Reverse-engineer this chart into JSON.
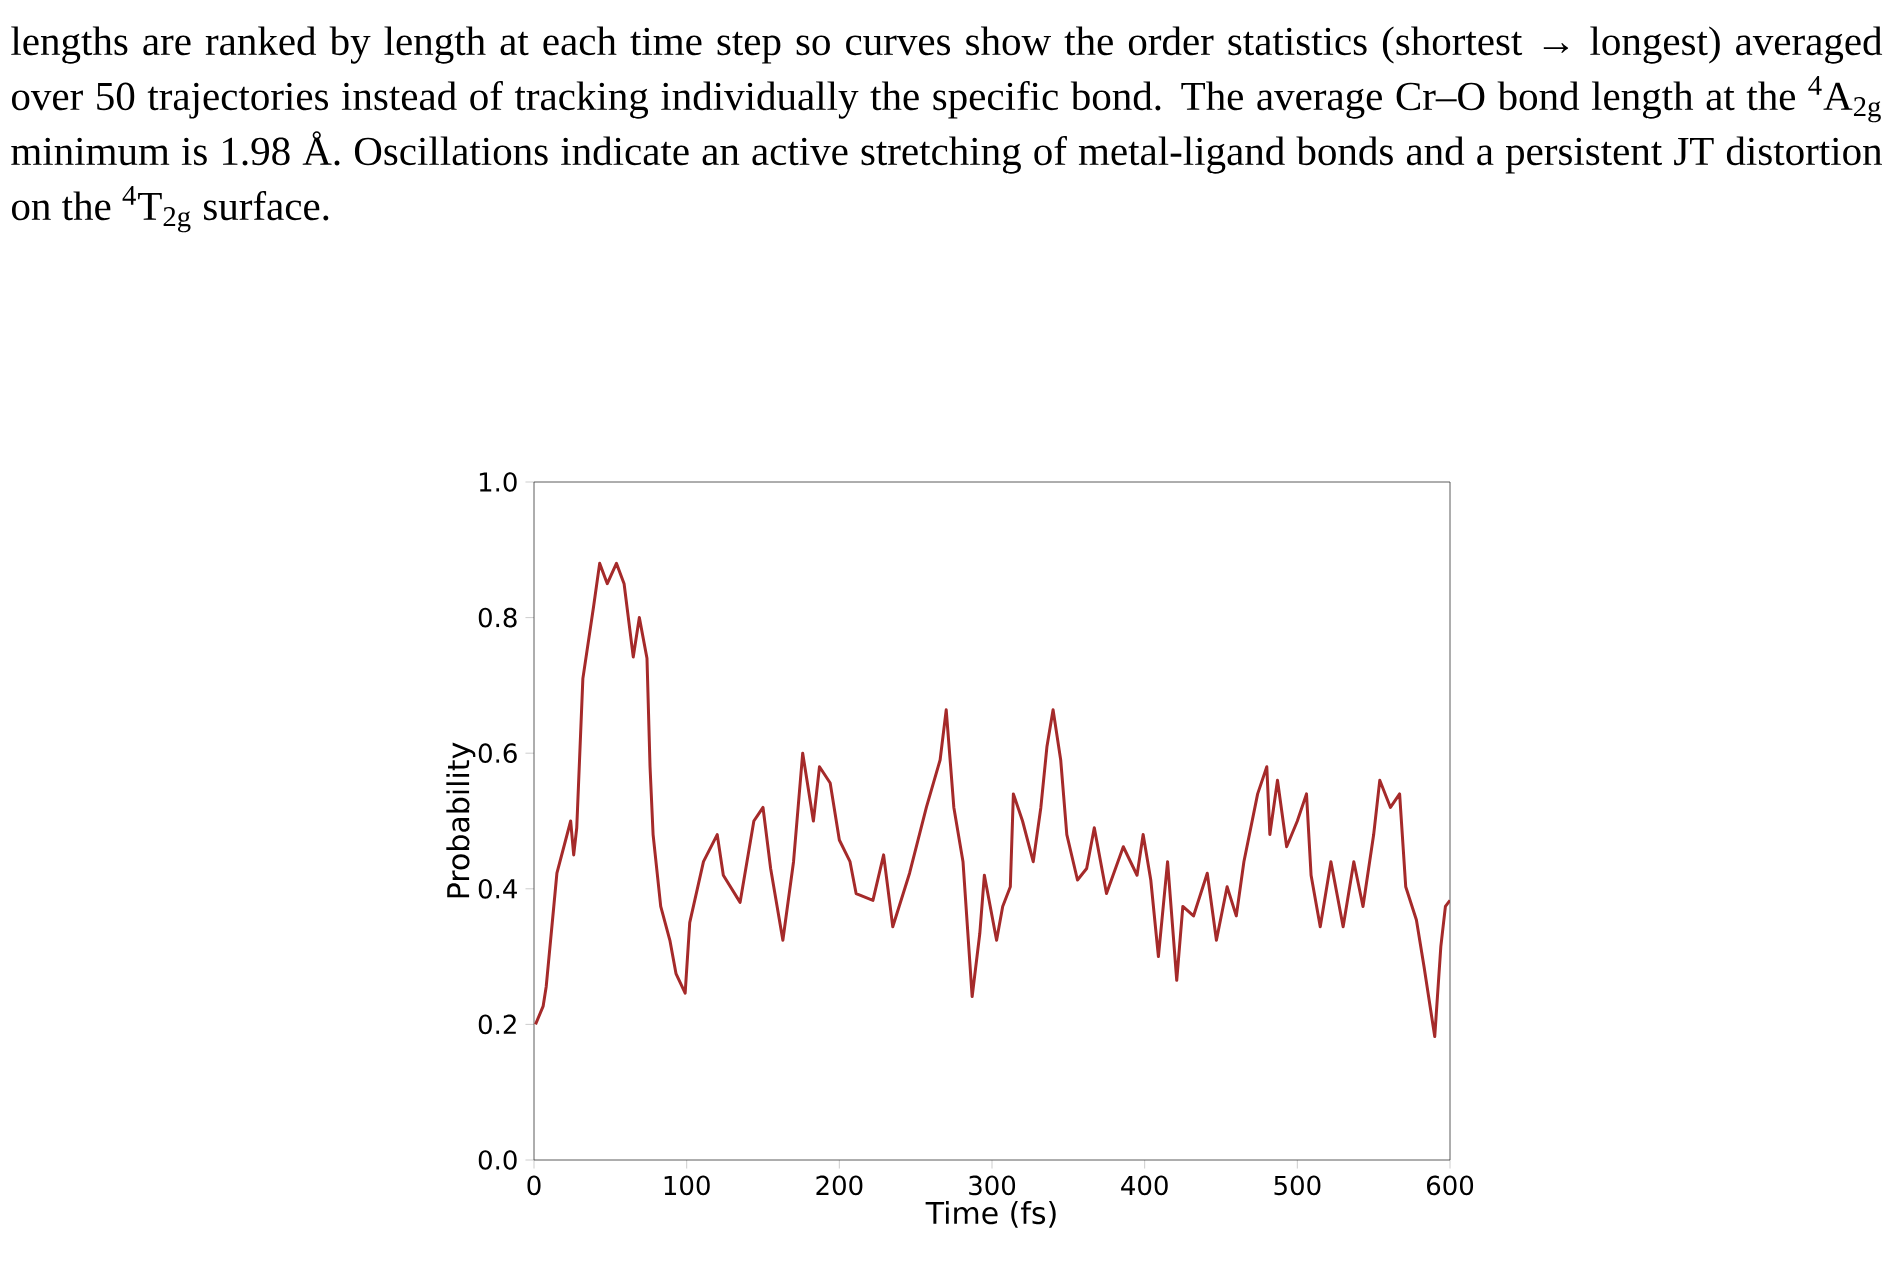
{
  "chart_data": {
    "type": "line",
    "xlabel": "Time (fs)",
    "ylabel": "Probability",
    "annotations": [
      "lengths are ranked by length at each time step so curves show the order statistics (shortest → longest) averaged over 50 trajectories instead of tracking individually the specific bond. The average Cr–O bond length at the $^{4}$A$_{2g}$ minimum is 1.98 Å. Oscillations indicate an active stretching of metal-ligand bonds and a persistent JT distortion on the $^{4}$T$_{2g}$ surface."
    ],
    "xlim": [
      0,
      600
    ],
    "ylim": [
      0,
      1
    ],
    "xticks": [
      0,
      100,
      200,
      300,
      400,
      500,
      600
    ],
    "yticks": [
      {
        "value": 0,
        "label": "0.0"
      },
      {
        "value": 0.2,
        "label": "0.2"
      },
      {
        "value": 0.4,
        "label": "0.4"
      },
      {
        "value": 0.6,
        "label": "0.6"
      },
      {
        "value": 0.8,
        "label": "0.8"
      },
      {
        "value": 1,
        "label": "1.0"
      }
    ],
    "series": [
      {
        "color": "#a52a2a",
        "x": [
          1,
          6,
          8,
          13,
          15,
          24,
          26,
          28,
          32,
          39,
          43,
          48,
          54,
          59,
          65,
          69,
          74,
          76,
          78,
          83,
          89,
          93,
          99,
          102,
          111,
          120,
          124,
          135,
          144,
          150,
          155,
          163,
          170,
          176,
          183,
          187,
          194,
          200,
          207,
          211,
          222,
          229,
          235,
          246,
          257,
          266,
          270,
          275,
          281,
          287,
          292,
          295,
          303,
          307,
          312,
          314,
          320,
          327,
          332,
          336,
          340,
          345,
          349,
          356,
          362,
          367,
          375,
          386,
          395,
          399,
          404,
          409,
          415,
          421,
          425,
          432,
          441,
          447,
          454,
          460,
          465,
          474,
          480,
          482,
          487,
          493,
          500,
          506,
          509,
          515,
          522,
          530,
          537,
          543,
          550,
          554,
          561,
          567,
          571,
          578,
          583,
          590,
          594,
          597,
          600
        ],
        "values": [
          0.2,
          0.227,
          0.256,
          0.375,
          0.423,
          0.5,
          0.45,
          0.49,
          0.71,
          0.816,
          0.88,
          0.85,
          0.88,
          0.85,
          0.742,
          0.8,
          0.74,
          0.58,
          0.48,
          0.374,
          0.324,
          0.275,
          0.246,
          0.35,
          0.44,
          0.48,
          0.42,
          0.38,
          0.5,
          0.52,
          0.43,
          0.324,
          0.44,
          0.6,
          0.5,
          0.58,
          0.556,
          0.472,
          0.44,
          0.393,
          0.383,
          0.45,
          0.344,
          0.423,
          0.52,
          0.59,
          0.664,
          0.52,
          0.44,
          0.241,
          0.334,
          0.42,
          0.324,
          0.374,
          0.403,
          0.54,
          0.5,
          0.44,
          0.52,
          0.61,
          0.664,
          0.59,
          0.48,
          0.413,
          0.43,
          0.49,
          0.393,
          0.462,
          0.42,
          0.48,
          0.413,
          0.3,
          0.44,
          0.265,
          0.374,
          0.36,
          0.423,
          0.324,
          0.403,
          0.36,
          0.44,
          0.54,
          0.58,
          0.48,
          0.56,
          0.462,
          0.5,
          0.54,
          0.42,
          0.344,
          0.44,
          0.344,
          0.44,
          0.374,
          0.48,
          0.56,
          0.52,
          0.54,
          0.403,
          0.354,
          0.285,
          0.182,
          0.315,
          0.374,
          0.383
        ]
      }
    ]
  }
}
